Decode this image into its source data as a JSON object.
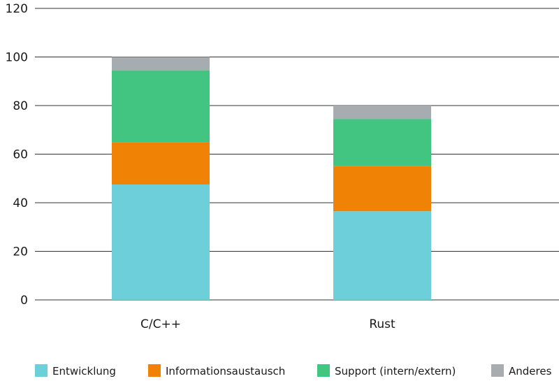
{
  "chart_data": {
    "type": "bar",
    "stacked": true,
    "title": "",
    "xlabel": "",
    "ylabel": "",
    "ylim": [
      0,
      120
    ],
    "yticks": [
      0,
      20,
      40,
      60,
      80,
      100,
      120
    ],
    "grid": true,
    "legend_position": "bottom",
    "categories": [
      "C/C++",
      "Rust"
    ],
    "series": [
      {
        "name": "Entwicklung",
        "color": "#6ccfd9",
        "values": [
          47.5,
          36.5
        ]
      },
      {
        "name": "Informationsaustausch",
        "color": "#f08305",
        "values": [
          17.5,
          18.5
        ]
      },
      {
        "name": "Support (intern/extern)",
        "color": "#43c582",
        "values": [
          29.5,
          19.5
        ]
      },
      {
        "name": "Anderes",
        "color": "#a7acb0",
        "values": [
          5.5,
          5.5
        ]
      }
    ]
  }
}
